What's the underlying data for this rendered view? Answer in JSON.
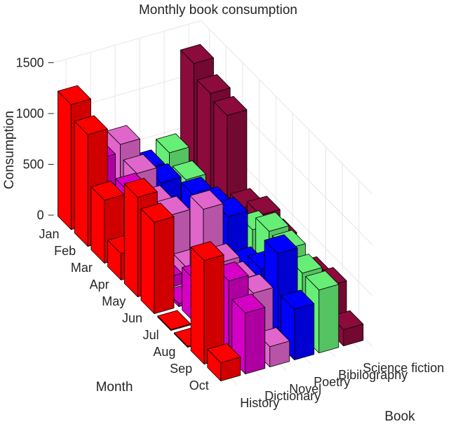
{
  "chart_data": {
    "type": "bar3",
    "title": "Monthly book consumption",
    "xlabel": "Month",
    "ylabel": "Book",
    "zlabel": "Consumption",
    "months": [
      "Jan",
      "Feb",
      "Mar",
      "Apr",
      "May",
      "Jun",
      "Jul",
      "Aug",
      "Sep",
      "Oct"
    ],
    "books": [
      "History",
      "Dictionary",
      "Novel",
      "Poetry",
      "Bibilography",
      "Science fiction"
    ],
    "zticks": [
      "0",
      "500",
      "1000",
      "1500"
    ],
    "zlim": [
      0,
      1500
    ],
    "series": [
      {
        "name": "History",
        "color": "#ff0000",
        "values": [
          1230,
          1100,
          620,
          260,
          980,
          900,
          10,
          10,
          1020,
          180
        ]
      },
      {
        "name": "Dictionary",
        "color": "#d400c4",
        "values": [
          620,
          340,
          630,
          210,
          110,
          30,
          420,
          400,
          750,
          600
        ]
      },
      {
        "name": "Novel",
        "color": "#e066cc",
        "values": [
          700,
          580,
          440,
          500,
          150,
          890,
          530,
          520,
          560,
          200
        ]
      },
      {
        "name": "Poetry",
        "color": "#0000ff",
        "values": [
          390,
          420,
          200,
          620,
          690,
          750,
          430,
          560,
          880,
          500
        ]
      },
      {
        "name": "Bibilography",
        "color": "#66ee77",
        "values": [
          480,
          380,
          280,
          380,
          420,
          550,
          700,
          690,
          620,
          620
        ]
      },
      {
        "name": "Science fiction",
        "color": "#8c0a3c",
        "values": [
          1290,
          1160,
          1110,
          370,
          460,
          400,
          240,
          360,
          420,
          160
        ]
      }
    ],
    "grid": true,
    "view": "3d-oblique"
  }
}
